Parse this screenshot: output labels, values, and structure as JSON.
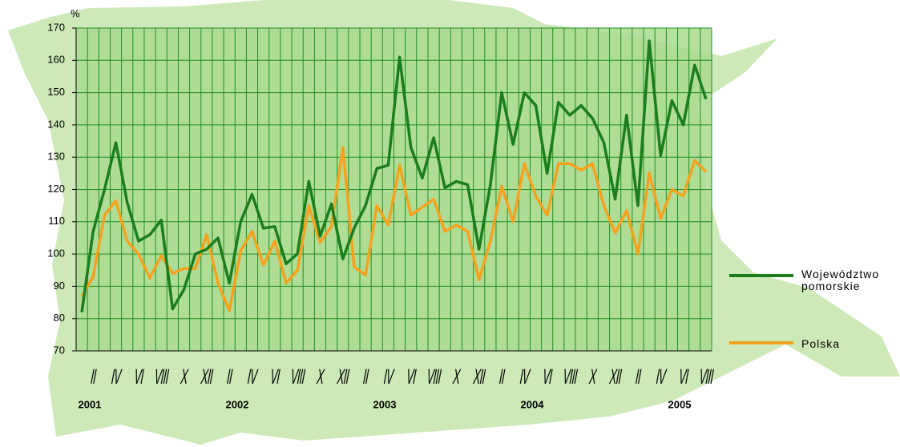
{
  "chart_data": {
    "type": "line",
    "y_unit": "%",
    "categories": [
      null,
      "II",
      null,
      "IV",
      null,
      "VI",
      null,
      "VIII",
      null,
      "X",
      null,
      "XII",
      null,
      "II",
      null,
      "IV",
      null,
      "VI",
      null,
      "VIII",
      null,
      "X",
      null,
      "XII",
      null,
      "II",
      null,
      "IV",
      null,
      "VI",
      null,
      "VIII",
      null,
      "X",
      null,
      "XII",
      null,
      "II",
      null,
      "IV",
      null,
      "VI",
      null,
      "VIII",
      null,
      "X",
      null,
      "XII",
      null,
      "II",
      null,
      "IV",
      null,
      "VI",
      null,
      "VIII"
    ],
    "years": [
      "2001",
      "2002",
      "2003",
      "2004",
      "2005"
    ],
    "series": [
      {
        "name": "Województwo pomorskie",
        "color": "#1b7d1b",
        "values": [
          82,
          107,
          120,
          134.5,
          116,
          104,
          106,
          110.5,
          83,
          89,
          100,
          101.5,
          105,
          91,
          110,
          118.5,
          108,
          108.5,
          97,
          100,
          122.5,
          105.5,
          115.5,
          98.5,
          108,
          115,
          126.5,
          127.5,
          161,
          133,
          123.5,
          136,
          120.5,
          122.5,
          121.5,
          101.5,
          121.5,
          150,
          134,
          150,
          146,
          125,
          147,
          143,
          146,
          142,
          134.5,
          117,
          143,
          115,
          166,
          130.5,
          147.5,
          140,
          158.5,
          148
        ]
      },
      {
        "name": "Polska",
        "color": "#f5a21e",
        "values": [
          87,
          93,
          112,
          116.5,
          104,
          100,
          92.5,
          99.5,
          94,
          95.5,
          95.5,
          106,
          91,
          82.5,
          101,
          107,
          96.5,
          104,
          91,
          95,
          115,
          103.5,
          108.5,
          133,
          96,
          93.5,
          115,
          109,
          127.5,
          112,
          114.5,
          117,
          107,
          109,
          107,
          92,
          104,
          121,
          110,
          128,
          118,
          112,
          128,
          128,
          126,
          128,
          115,
          106.5,
          113.5,
          100,
          125,
          111,
          120,
          118,
          129,
          125.5
        ]
      }
    ],
    "ylim": [
      70,
      170
    ],
    "yticks": [
      70,
      80,
      90,
      100,
      110,
      120,
      130,
      140,
      150,
      160,
      170
    ],
    "grid": true
  }
}
